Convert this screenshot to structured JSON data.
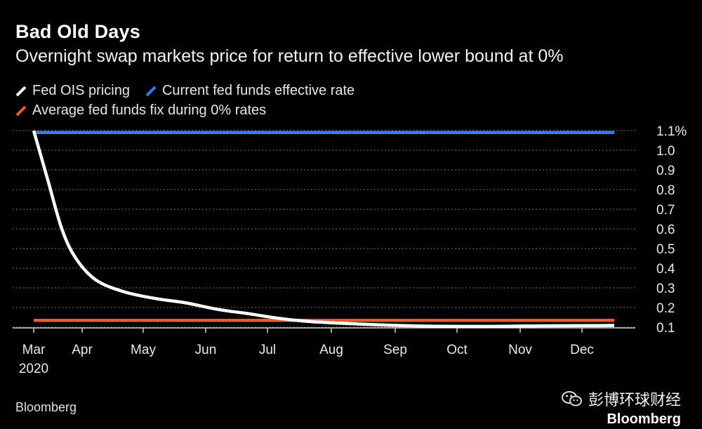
{
  "title": "Bad Old Days",
  "subtitle": "Overnight swap markets price for return to effective lower bound at 0%",
  "source": "Bloomberg",
  "watermark": {
    "text": "彭博环球财经",
    "brand": "Bloomberg"
  },
  "chart_data": {
    "type": "line",
    "title": "Bad Old Days",
    "subtitle": "Overnight swap markets price for return to effective lower bound at 0%",
    "legend": {
      "placement": "top-left"
    },
    "grid": true,
    "x": {
      "ticks": [
        "Mar",
        "Apr",
        "May",
        "Jun",
        "Jul",
        "Aug",
        "Sep",
        "Oct",
        "Nov",
        "Dec"
      ],
      "year_label": "2020",
      "range": [
        "2020-03",
        "2020-12"
      ]
    },
    "y": {
      "ticks": [
        "0.1",
        "0.2",
        "0.3",
        "0.4",
        "0.5",
        "0.6",
        "0.7",
        "0.8",
        "0.9",
        "1.0",
        "1.1%"
      ],
      "range": [
        0.1,
        1.1
      ]
    },
    "series": [
      {
        "name": "Fed OIS pricing",
        "color": "#ffffff",
        "points": [
          [
            "2020-03-01",
            1.1
          ],
          [
            "2020-03-08",
            0.85
          ],
          [
            "2020-03-15",
            0.6
          ],
          [
            "2020-03-22",
            0.45
          ],
          [
            "2020-04-01",
            0.34
          ],
          [
            "2020-04-15",
            0.28
          ],
          [
            "2020-05-01",
            0.245
          ],
          [
            "2020-05-15",
            0.225
          ],
          [
            "2020-06-01",
            0.19
          ],
          [
            "2020-06-15",
            0.17
          ],
          [
            "2020-07-01",
            0.145
          ],
          [
            "2020-07-15",
            0.13
          ],
          [
            "2020-08-01",
            0.12
          ],
          [
            "2020-08-15",
            0.114
          ],
          [
            "2020-09-01",
            0.108
          ],
          [
            "2020-09-15",
            0.105
          ],
          [
            "2020-10-01",
            0.104
          ],
          [
            "2020-10-15",
            0.104
          ],
          [
            "2020-11-01",
            0.106
          ],
          [
            "2020-11-15",
            0.107
          ],
          [
            "2020-12-01",
            0.108
          ],
          [
            "2020-12-15",
            0.109
          ]
        ]
      },
      {
        "name": "Current fed funds effective rate",
        "color": "#2f7ff2",
        "points": [
          [
            "2020-03-01",
            1.09
          ],
          [
            "2020-12-15",
            1.09
          ]
        ]
      },
      {
        "name": "Average fed funds fix during 0% rates",
        "color": "#ee5a2c",
        "points": [
          [
            "2020-03-01",
            0.135
          ],
          [
            "2020-12-15",
            0.135
          ]
        ]
      }
    ]
  }
}
